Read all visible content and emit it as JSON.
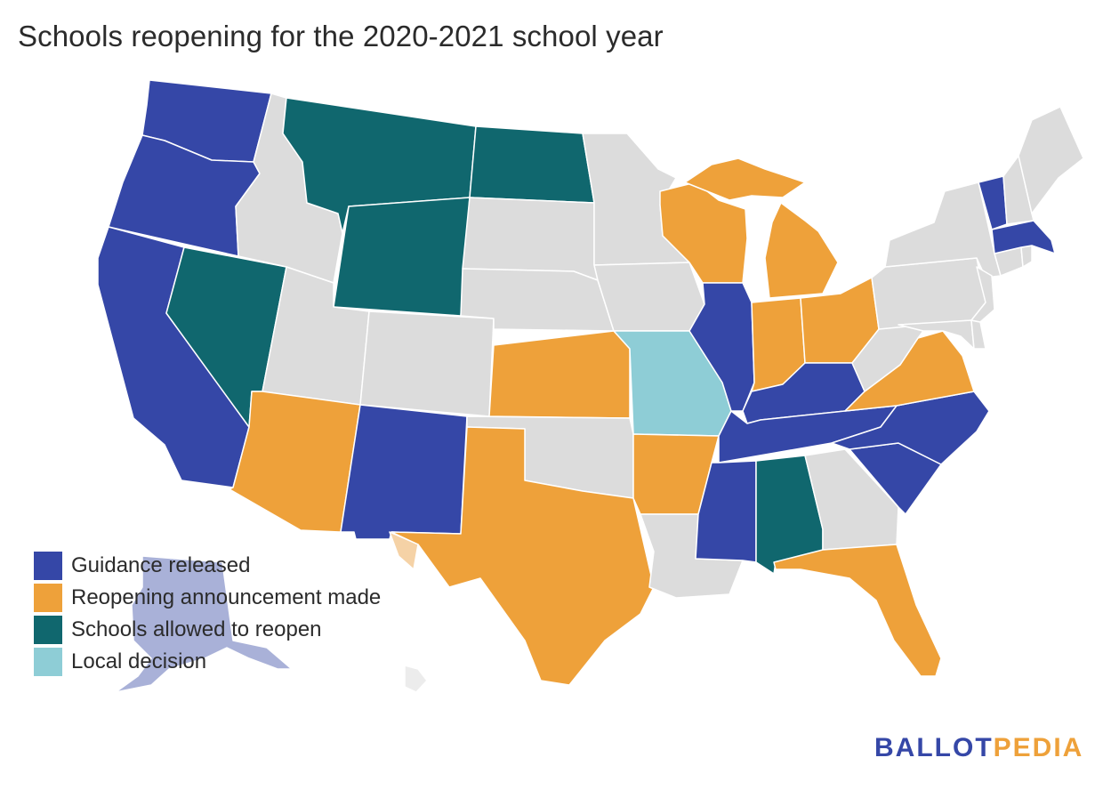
{
  "title": "Schools reopening for the 2020-2021 school year",
  "colors": {
    "guidance": "#3547a7",
    "announcement": "#eea13a",
    "allowed": "#10676e",
    "local": "#8ecdd6",
    "none": "#dcdcdc",
    "guidance_faded": "#a9b1d8",
    "announcement_faded": "#f5d2a6",
    "none_faded": "#ececec"
  },
  "legend": [
    {
      "label": "Guidance released",
      "color": "#3547a7"
    },
    {
      "label": "Reopening announcement made",
      "color": "#eea13a"
    },
    {
      "label": "Schools allowed to reopen",
      "color": "#10676e"
    },
    {
      "label": "Local decision",
      "color": "#8ecdd6"
    }
  ],
  "logo": {
    "left": "BALLOT",
    "right": "PEDIA",
    "left_color": "#3547a7",
    "right_color": "#eea13a"
  }
}
